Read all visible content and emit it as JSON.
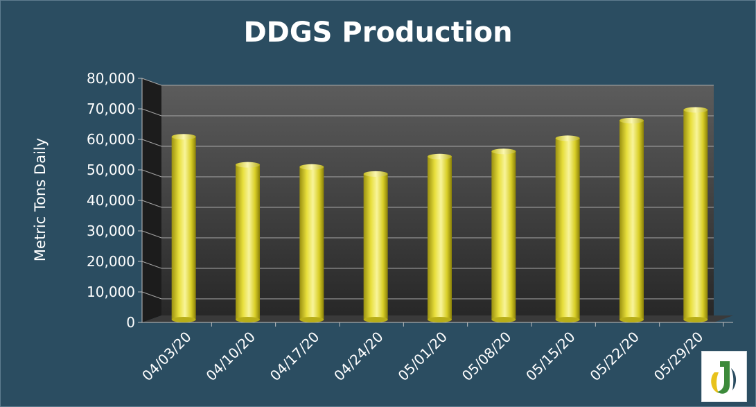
{
  "chart_data": {
    "type": "bar",
    "title": "DDGS Production",
    "xlabel": "",
    "ylabel": "Metric Tons Daily",
    "categories": [
      "04/03/20",
      "04/10/20",
      "04/17/20",
      "04/24/20",
      "05/01/20",
      "05/08/20",
      "05/15/20",
      "05/22/20",
      "05/29/20"
    ],
    "values": [
      62000,
      52800,
      52100,
      49800,
      55500,
      57200,
      61500,
      67300,
      70800
    ],
    "ylim": [
      0,
      80000
    ],
    "yticks": [
      "0",
      "10,000",
      "20,000",
      "30,000",
      "40,000",
      "50,000",
      "60,000",
      "70,000",
      "80,000"
    ],
    "grid": true,
    "legend": "none",
    "colors": {
      "background": "#2b4d61",
      "bar": "#e8df3c",
      "bar_highlight": "#f8f49a",
      "bar_shadow": "#9a9010",
      "wall_top": "#5c5c5c",
      "wall_bottom": "#262626",
      "side_wall": "#1c1c1c",
      "gridline": "#a8a8a8",
      "text": "#ffffff"
    }
  },
  "logo": {
    "icon": "company-logo-icon"
  }
}
